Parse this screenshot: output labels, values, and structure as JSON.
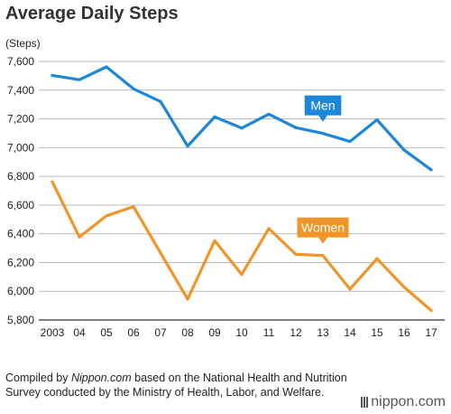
{
  "header": {
    "title": "Average Daily Steps"
  },
  "footer": {
    "note_prefix": "Compiled by ",
    "note_source": "Nippon.com",
    "note_suffix": " based on the National Health and Nutrition Survey conducted by the Ministry of Health, Labor, and Welfare.",
    "logo": "nippon.com"
  },
  "colors": {
    "men": "#1a87d8",
    "women": "#f0952a",
    "grid": "#bbbbbb",
    "axis": "#333333"
  },
  "chart_data": {
    "type": "line",
    "title": "Average Daily Steps",
    "ylabel": "(Steps)",
    "xlabel": "",
    "categories": [
      "2003",
      "04",
      "05",
      "06",
      "07",
      "08",
      "09",
      "10",
      "11",
      "12",
      "13",
      "14",
      "15",
      "16",
      "17"
    ],
    "ylim": [
      5800,
      7600
    ],
    "yticks": [
      5800,
      6000,
      6200,
      6400,
      6600,
      6800,
      7000,
      7200,
      7400,
      7600
    ],
    "ytick_labels": [
      "5,800",
      "6,000",
      "6,200",
      "6,400",
      "6,600",
      "6,800",
      "7,000",
      "7,200",
      "7,400",
      "7,600"
    ],
    "grid": true,
    "series": [
      {
        "name": "Men",
        "values": [
          7503,
          7473,
          7562,
          7409,
          7321,
          7011,
          7214,
          7136,
          7233,
          7139,
          7099,
          7043,
          7194,
          6984,
          6846
        ],
        "label_index": 10
      },
      {
        "name": "Women",
        "values": [
          6762,
          6378,
          6525,
          6589,
          6267,
          5945,
          6352,
          6117,
          6437,
          6257,
          6249,
          6015,
          6227,
          6029,
          5867
        ],
        "label_index": 10
      }
    ]
  }
}
